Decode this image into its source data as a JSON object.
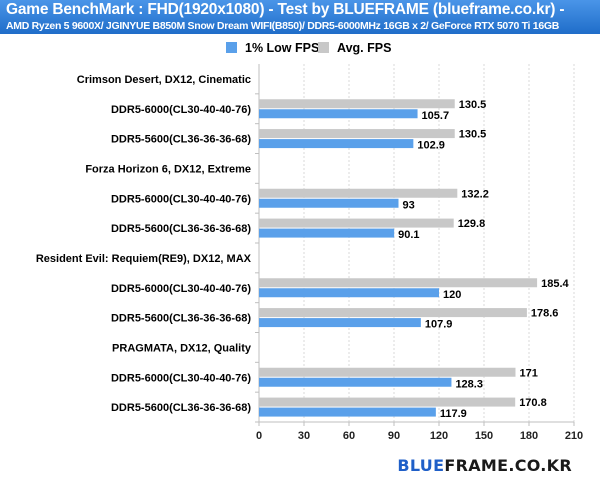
{
  "header": {
    "title": "Game BenchMark : FHD(1920x1080) - Test by BLUEFRAME (blueframe.co.kr) -",
    "subtitle": "AMD Ryzen 5 9600X/ JGINYUE B850M Snow Dream WIFI(B850)/ DDR5-6000MHz 16GB x 2/ GeForce RTX 5070 Ti 16GB"
  },
  "brand": {
    "part1": "BLUE",
    "part2": "FRAME.CO.KR",
    "color1": "#1f5fc8",
    "color2": "#1a1a1a"
  },
  "colors": {
    "low": "#5aa0ea",
    "avg": "#c8c8c8",
    "grid": "#d8d8d8",
    "axis": "#bfbfbf"
  },
  "chart_data": {
    "type": "bar",
    "orientation": "horizontal",
    "legend_position": "top-right",
    "xlim": [
      0,
      210
    ],
    "xticks": [
      0,
      30,
      60,
      90,
      120,
      150,
      180,
      210
    ],
    "grid": true,
    "series": [
      {
        "name": "1% Low FPS",
        "key": "low"
      },
      {
        "name": "Avg. FPS",
        "key": "avg"
      }
    ],
    "rows": [
      {
        "label": "Crimson Desert, DX12, Cinematic",
        "group": true
      },
      {
        "label": "DDR5-6000(CL30-40-40-76)",
        "avg": 130.5,
        "low": 105.7
      },
      {
        "label": "DDR5-5600(CL36-36-36-68)",
        "avg": 130.5,
        "low": 102.9
      },
      {
        "label": "Forza Horizon 6, DX12, Extreme",
        "group": true
      },
      {
        "label": "DDR5-6000(CL30-40-40-76)",
        "avg": 132.2,
        "low": 93
      },
      {
        "label": "DDR5-5600(CL36-36-36-68)",
        "avg": 129.8,
        "low": 90.1
      },
      {
        "label": "Resident Evil: Requiem(RE9), DX12, MAX",
        "group": true
      },
      {
        "label": "DDR5-6000(CL30-40-40-76)",
        "avg": 185.4,
        "low": 120
      },
      {
        "label": "DDR5-5600(CL36-36-36-68)",
        "avg": 178.6,
        "low": 107.9
      },
      {
        "label": "PRAGMATA, DX12, Quality",
        "group": true
      },
      {
        "label": "DDR5-6000(CL30-40-40-76)",
        "avg": 171,
        "low": 128.3
      },
      {
        "label": "DDR5-5600(CL36-36-36-68)",
        "avg": 170.8,
        "low": 117.9
      }
    ]
  }
}
